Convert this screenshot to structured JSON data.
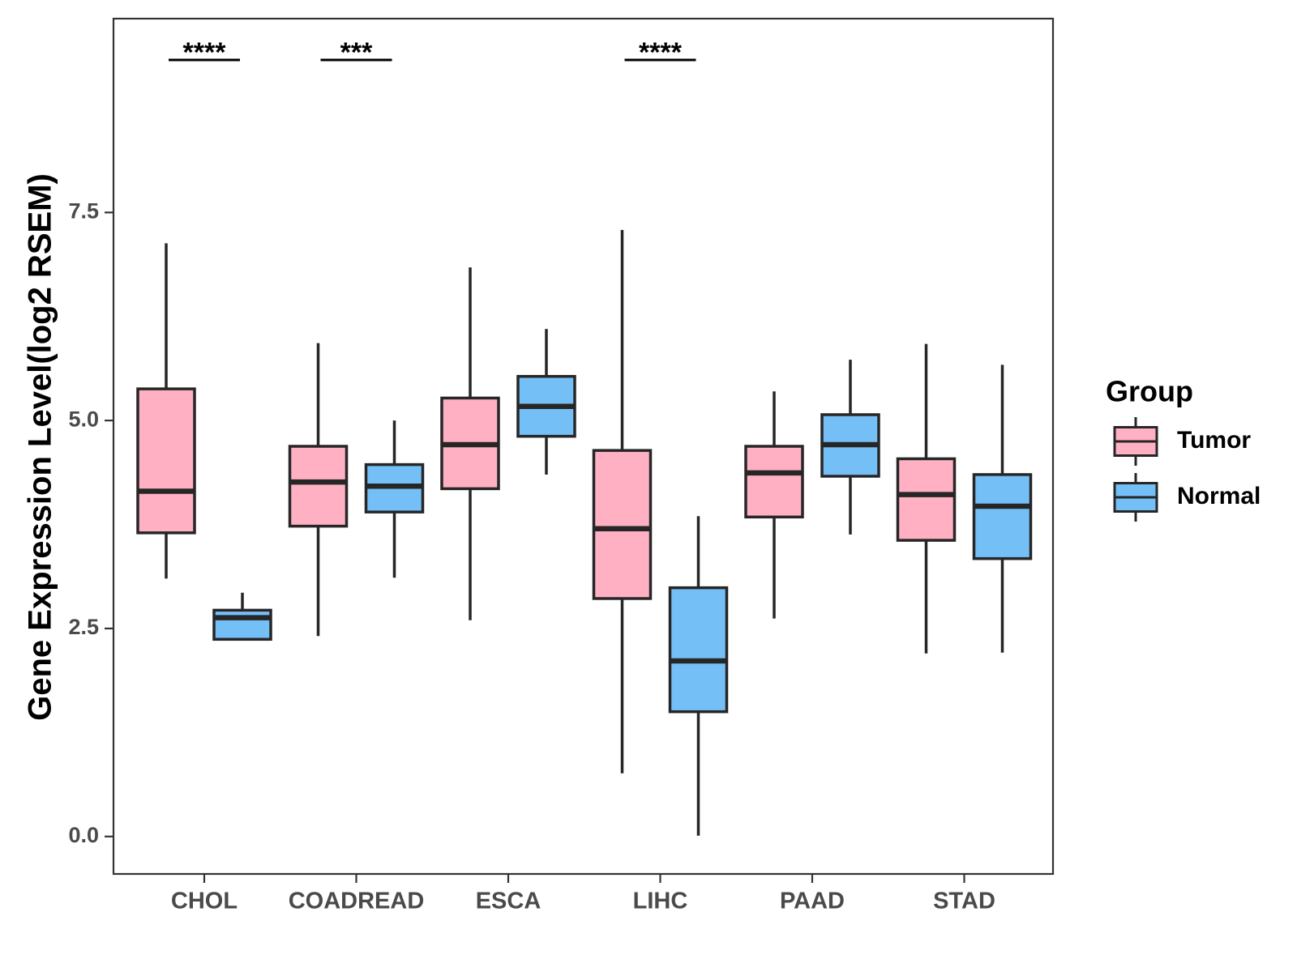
{
  "chart_data": {
    "type": "boxplot",
    "title": "",
    "xlabel": "",
    "ylabel": "Gene Expression Level(log2 RSEM)",
    "ylim": [
      -0.45,
      9.83
    ],
    "yticks": [
      0.0,
      2.5,
      5.0,
      7.5
    ],
    "ytick_labels": [
      "0.0",
      "2.5",
      "5.0",
      "7.5"
    ],
    "grid": false,
    "categories": [
      "CHOL",
      "COADREAD",
      "ESCA",
      "LIHC",
      "PAAD",
      "STAD"
    ],
    "series": [
      {
        "name": "Tumor",
        "color": "#FFB0C2",
        "boxes": [
          {
            "min": 3.1,
            "q1": 3.65,
            "median": 4.15,
            "q3": 5.38,
            "max": 7.13
          },
          {
            "min": 2.41,
            "q1": 3.73,
            "median": 4.26,
            "q3": 4.69,
            "max": 5.93
          },
          {
            "min": 2.6,
            "q1": 4.18,
            "median": 4.71,
            "q3": 5.27,
            "max": 6.84
          },
          {
            "min": 0.76,
            "q1": 2.86,
            "median": 3.7,
            "q3": 4.64,
            "max": 7.29
          },
          {
            "min": 2.62,
            "q1": 3.84,
            "median": 4.37,
            "q3": 4.69,
            "max": 5.35
          },
          {
            "min": 2.2,
            "q1": 3.56,
            "median": 4.11,
            "q3": 4.54,
            "max": 5.92
          }
        ]
      },
      {
        "name": "Normal",
        "color": "#75BFF7",
        "boxes": [
          {
            "min": 2.37,
            "q1": 2.37,
            "median": 2.63,
            "q3": 2.72,
            "max": 2.93
          },
          {
            "min": 3.11,
            "q1": 3.9,
            "median": 4.21,
            "q3": 4.47,
            "max": 5.0
          },
          {
            "min": 4.35,
            "q1": 4.81,
            "median": 5.17,
            "q3": 5.53,
            "max": 6.1
          },
          {
            "min": 0.01,
            "q1": 1.5,
            "median": 2.11,
            "q3": 2.99,
            "max": 3.85
          },
          {
            "min": 3.63,
            "q1": 4.33,
            "median": 4.71,
            "q3": 5.07,
            "max": 5.73
          },
          {
            "min": 2.21,
            "q1": 3.34,
            "median": 3.97,
            "q3": 4.35,
            "max": 5.67
          }
        ]
      }
    ],
    "significance": [
      {
        "category": "CHOL",
        "label": "****"
      },
      {
        "category": "COADREAD",
        "label": "***"
      },
      {
        "category": "LIHC",
        "label": "****"
      }
    ],
    "legend": {
      "title": "Group",
      "position": "right",
      "entries": [
        "Tumor",
        "Normal"
      ]
    }
  }
}
